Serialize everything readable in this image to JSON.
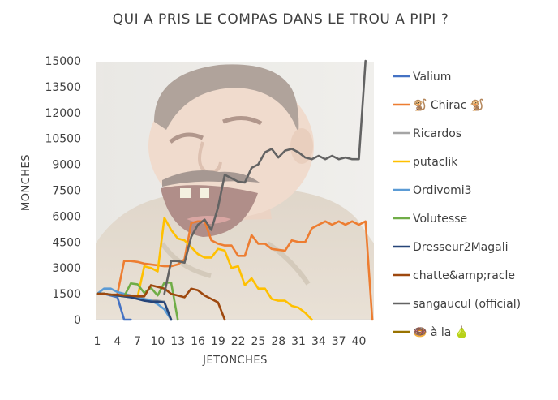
{
  "chart_data": {
    "type": "line",
    "title": "QUI A PRIS LE COMPAS DANS LE TROU A PIPI ?",
    "xlabel": "JETONCHES",
    "ylabel": "MONCHES",
    "xlim": [
      1,
      42
    ],
    "ylim": [
      0,
      15000
    ],
    "x_ticks": [
      1,
      4,
      7,
      10,
      13,
      16,
      19,
      22,
      25,
      28,
      31,
      34,
      37,
      40
    ],
    "y_ticks": [
      0,
      1500,
      3000,
      4500,
      6000,
      7500,
      9000,
      10500,
      12000,
      13500,
      15000
    ],
    "y_tick_labels": [
      "0",
      "1500",
      "3000",
      "4500",
      "6000",
      "7500",
      "9000",
      "10500",
      "12000",
      "13500",
      "15000"
    ],
    "grid": false,
    "legend_position": "right",
    "background_image": "laughing-man-meme",
    "series": [
      {
        "name": "Valium",
        "color": "#4472C4",
        "x": [
          1,
          2,
          3,
          4,
          5,
          6
        ],
        "y": [
          1500,
          1500,
          1400,
          1300,
          0,
          0
        ]
      },
      {
        "name": "🐒 Chirac 🐒",
        "color": "#ED7D31",
        "x": [
          4,
          5,
          6,
          7,
          8,
          9,
          10,
          11,
          12,
          13,
          14,
          15,
          16,
          17,
          18,
          19,
          20,
          21,
          22,
          23,
          24,
          25,
          26,
          27,
          28,
          29,
          30,
          31,
          32,
          33,
          34,
          35,
          36,
          37,
          38,
          39,
          40,
          41,
          42
        ],
        "y": [
          1500,
          3400,
          3400,
          3350,
          3250,
          3200,
          3150,
          3100,
          3100,
          3200,
          3500,
          5600,
          5700,
          5700,
          4600,
          4400,
          4300,
          4300,
          3700,
          3700,
          4900,
          4400,
          4400,
          4100,
          4050,
          4000,
          4600,
          4500,
          4500,
          5300,
          5500,
          5700,
          5500,
          5700,
          5500,
          5700,
          5500,
          5700,
          0
        ]
      },
      {
        "name": "Ricardos",
        "color": "#A5A5A5",
        "x": [
          1,
          2,
          3,
          4,
          5,
          6,
          7,
          8,
          9,
          10,
          11,
          12
        ],
        "y": [
          1500,
          1500,
          1450,
          1400,
          1350,
          1300,
          1250,
          1200,
          1150,
          1100,
          1050,
          0
        ]
      },
      {
        "name": "putaclik",
        "color": "#FFC000",
        "x": [
          1,
          2,
          3,
          4,
          5,
          6,
          7,
          8,
          9,
          10,
          11,
          12,
          13,
          14,
          15,
          16,
          17,
          18,
          19,
          20,
          21,
          22,
          23,
          24,
          25,
          26,
          27,
          28,
          29,
          30,
          31,
          32,
          33
        ],
        "y": [
          1500,
          1500,
          1450,
          1400,
          1350,
          1350,
          1300,
          3100,
          3000,
          2800,
          5900,
          5200,
          4700,
          4600,
          4200,
          3800,
          3600,
          3600,
          4100,
          4000,
          3000,
          3100,
          2000,
          2400,
          1800,
          1800,
          1200,
          1100,
          1100,
          800,
          700,
          400,
          0
        ]
      },
      {
        "name": "Ordivomi3",
        "color": "#5B9BD5",
        "x": [
          1,
          2,
          3,
          4,
          5,
          6,
          7,
          8,
          9,
          10,
          11,
          12
        ],
        "y": [
          1500,
          1800,
          1800,
          1600,
          1500,
          1400,
          1300,
          1200,
          1100,
          900,
          600,
          0
        ]
      },
      {
        "name": "Volutesse",
        "color": "#70AD47",
        "x": [
          1,
          2,
          3,
          4,
          5,
          6,
          7,
          8,
          9,
          10,
          11,
          12,
          13
        ],
        "y": [
          1500,
          1500,
          1450,
          1400,
          1350,
          2100,
          2050,
          1550,
          1850,
          1400,
          2150,
          2150,
          0
        ]
      },
      {
        "name": "Dresseur2Magali",
        "color": "#264478",
        "x": [
          1,
          2,
          3,
          4,
          5,
          6,
          7,
          8,
          9,
          10,
          11,
          12
        ],
        "y": [
          1500,
          1500,
          1450,
          1400,
          1350,
          1300,
          1200,
          1100,
          1050,
          1050,
          1000,
          0
        ]
      },
      {
        "name": "chatte&amp;racle",
        "color": "#9E480E",
        "x": [
          1,
          2,
          3,
          4,
          5,
          6,
          7,
          8,
          9,
          10,
          11,
          12,
          13,
          14,
          15,
          16,
          17,
          18,
          19,
          20
        ],
        "y": [
          1500,
          1500,
          1450,
          1450,
          1400,
          1400,
          1350,
          1350,
          2000,
          1900,
          1800,
          1500,
          1400,
          1300,
          1800,
          1700,
          1400,
          1200,
          1000,
          0
        ]
      },
      {
        "name": "sangaucul (official)",
        "color": "#636363",
        "x": [
          11,
          12,
          13,
          14,
          15,
          16,
          17,
          18,
          19,
          20,
          21,
          22,
          23,
          24,
          25,
          26,
          27,
          28,
          29,
          30,
          31,
          32,
          33,
          34,
          35,
          36,
          37,
          38,
          39,
          40,
          41
        ],
        "y": [
          1500,
          3400,
          3400,
          3300,
          4800,
          5500,
          5800,
          5200,
          6500,
          8400,
          8200,
          8000,
          7950,
          8800,
          9000,
          9700,
          9900,
          9400,
          9800,
          9900,
          9700,
          9400,
          9300,
          9500,
          9300,
          9500,
          9300,
          9400,
          9300,
          9300,
          15000
        ]
      },
      {
        "name": "🍩 à la 🍐",
        "color": "#997300",
        "x": [],
        "y": []
      }
    ]
  }
}
